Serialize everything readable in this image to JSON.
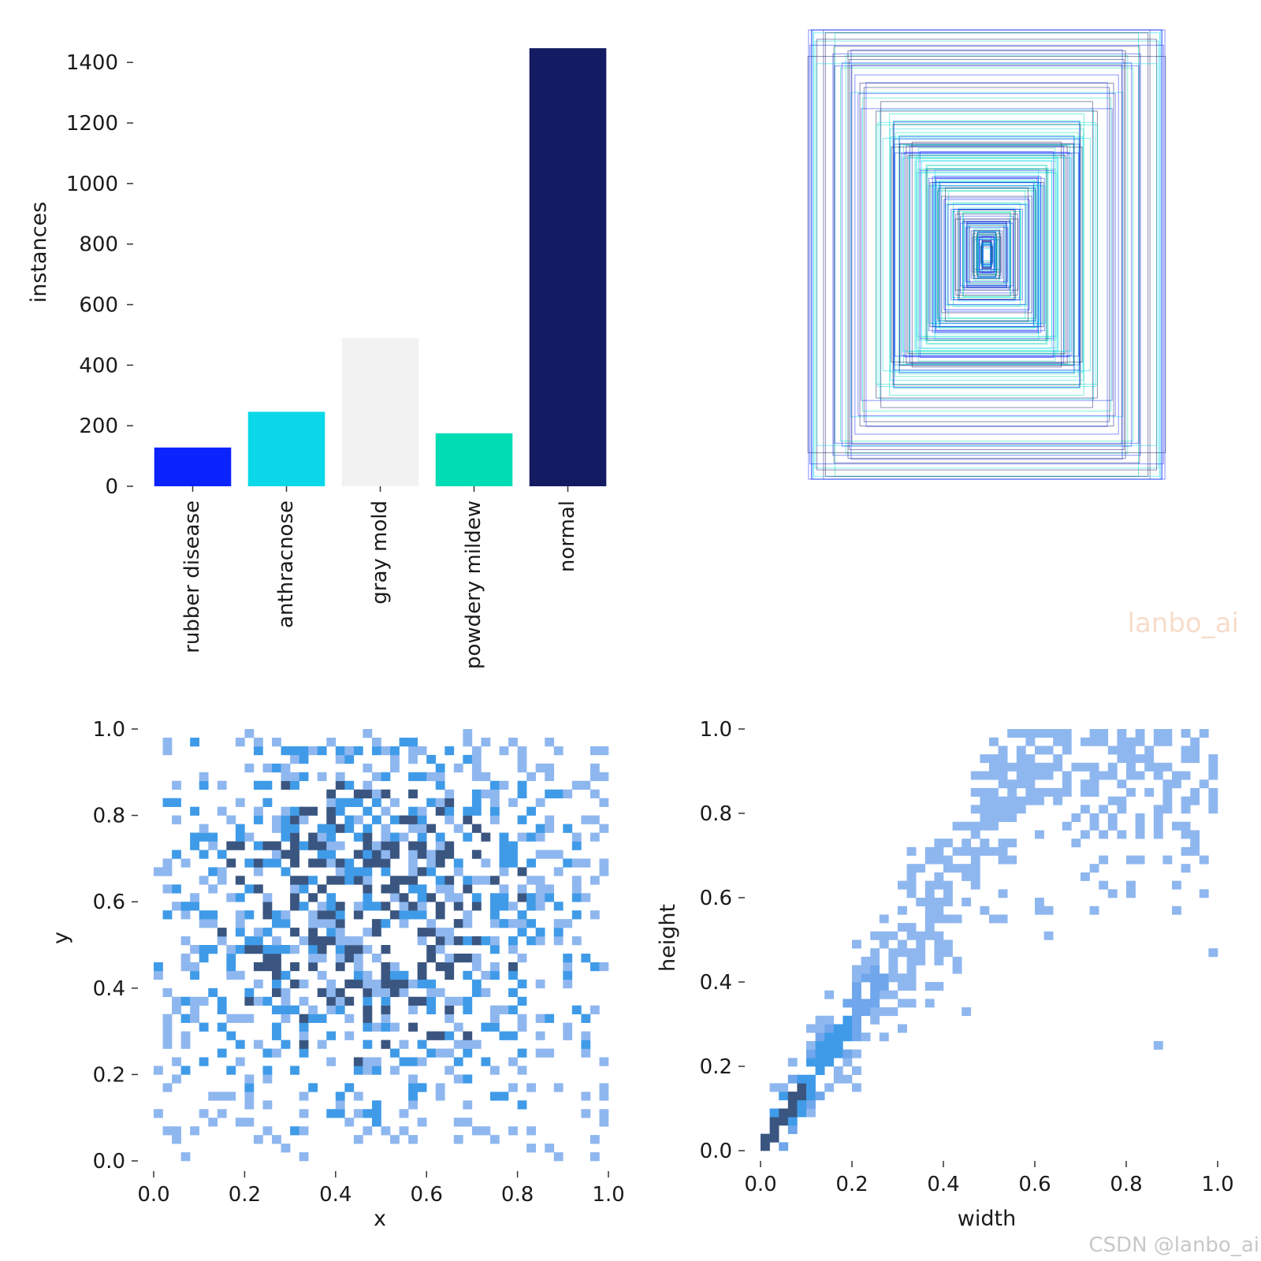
{
  "colors": {
    "palette": [
      "#0a23ff",
      "#0ad8e8",
      "#f2f2f2",
      "#00dcb4",
      "#131b63"
    ],
    "hist_light": "#8fb7ef",
    "hist_mid": "#3f9be8",
    "hist_dark": "#3a5680"
  },
  "chart_data": [
    {
      "type": "bar",
      "title": "",
      "xlabel": "",
      "ylabel": "instances",
      "categories": [
        "rubber disease",
        "anthracnose",
        "gray mold",
        "powdery mildew",
        "normal"
      ],
      "values": [
        128,
        246,
        490,
        175,
        1447
      ],
      "ylim": [
        0,
        1450
      ],
      "yticks": [
        0,
        200,
        400,
        600,
        800,
        1000,
        1200,
        1400
      ],
      "grid": false
    },
    {
      "type": "box-overlay",
      "title": "",
      "description_axis": "normalized box extents centered at (0.5, 0.5)",
      "colors": [
        "#0a23ff",
        "#0ad8e8",
        "#131b63",
        "#00dcb4"
      ]
    },
    {
      "type": "heatmap",
      "xlabel": "x",
      "ylabel": "y",
      "xlim": [
        0,
        1
      ],
      "ylim": [
        0,
        1
      ],
      "xticks": [
        0.0,
        0.2,
        0.4,
        0.6,
        0.8,
        1.0
      ],
      "yticks": [
        0.0,
        0.2,
        0.4,
        0.6,
        0.8,
        1.0
      ],
      "bins": 50
    },
    {
      "type": "heatmap",
      "xlabel": "width",
      "ylabel": "height",
      "xlim": [
        0,
        1
      ],
      "ylim": [
        0,
        1
      ],
      "xticks": [
        0.0,
        0.2,
        0.4,
        0.6,
        0.8,
        1.0
      ],
      "yticks": [
        0.0,
        0.2,
        0.4,
        0.6,
        0.8,
        1.0
      ],
      "bins": 50
    }
  ],
  "watermarks": {
    "inner": "lanbo_ai",
    "corner": "CSDN @lanbo_ai"
  }
}
